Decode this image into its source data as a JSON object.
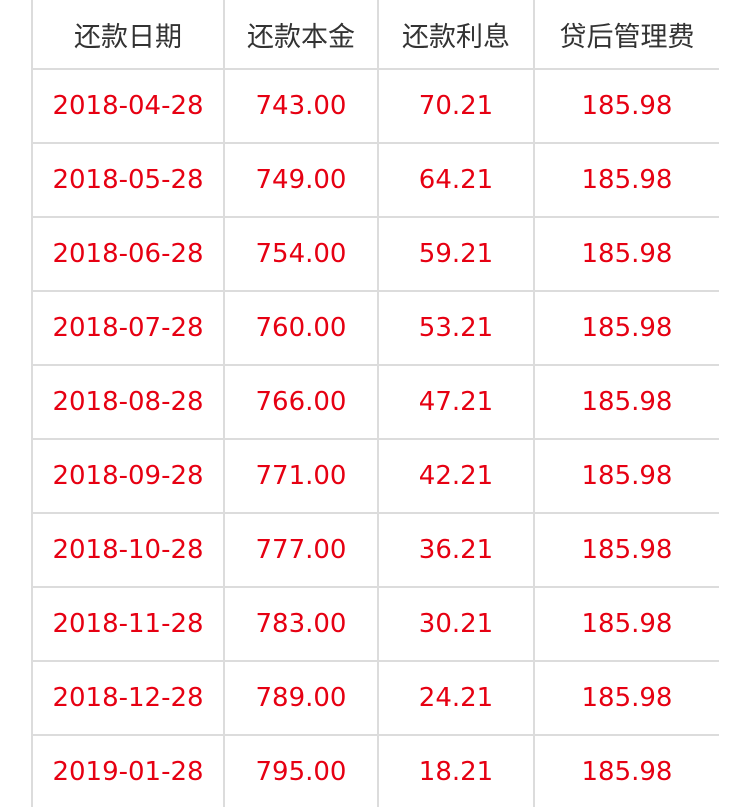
{
  "table": {
    "headers": [
      "还款日期",
      "还款本金",
      "还款利息",
      "贷后管理费"
    ],
    "rows": [
      [
        "2018-04-28",
        "743.00",
        "70.21",
        "185.98"
      ],
      [
        "2018-05-28",
        "749.00",
        "64.21",
        "185.98"
      ],
      [
        "2018-06-28",
        "754.00",
        "59.21",
        "185.98"
      ],
      [
        "2018-07-28",
        "760.00",
        "53.21",
        "185.98"
      ],
      [
        "2018-08-28",
        "766.00",
        "47.21",
        "185.98"
      ],
      [
        "2018-09-28",
        "771.00",
        "42.21",
        "185.98"
      ],
      [
        "2018-10-28",
        "777.00",
        "36.21",
        "185.98"
      ],
      [
        "2018-11-28",
        "783.00",
        "30.21",
        "185.98"
      ],
      [
        "2018-12-28",
        "789.00",
        "24.21",
        "185.98"
      ],
      [
        "2019-01-28",
        "795.00",
        "18.21",
        "185.98"
      ]
    ]
  },
  "colors": {
    "header_text": "#333333",
    "value_text": "#e60012",
    "grid_line": "#dcdcdc",
    "background": "#ffffff"
  }
}
